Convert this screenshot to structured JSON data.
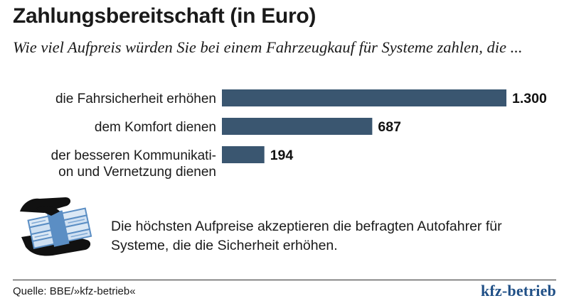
{
  "chart_data": {
    "type": "bar",
    "orientation": "horizontal",
    "title": "Zahlungsbereitschaft (in Euro)",
    "subtitle": "Wie viel Aufpreis würden Sie bei einem Fahrzeugkauf für Systeme zahlen, die ...",
    "categories": [
      [
        "die Fahrsicherheit erhöhen"
      ],
      [
        "dem Komfort dienen"
      ],
      [
        "der besseren Kommunikati-",
        "on und Vernetzung dienen"
      ]
    ],
    "values": [
      1300,
      687,
      194
    ],
    "value_labels": [
      "1.300",
      "687",
      "194"
    ],
    "xlim": [
      0,
      1300
    ],
    "grid": false,
    "bar_color": "#3a5670"
  },
  "note": "Die höchsten Aufpreise akzeptieren die befragten Autofahrer für Systeme, die die Sicherheit erhöhen.",
  "footer": {
    "source": "Quelle: BBE/»kfz-betrieb«",
    "brand": "kfz-betrieb"
  },
  "icon": {
    "name": "hand-with-money-icon",
    "color": "#5b8ec4"
  }
}
